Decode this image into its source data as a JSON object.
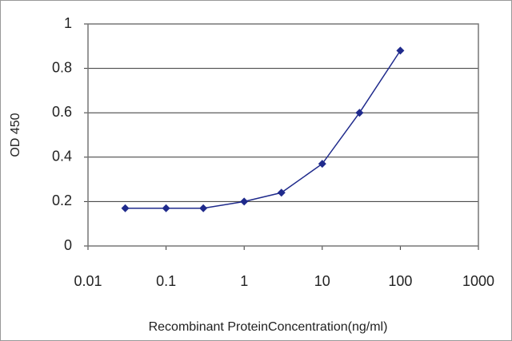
{
  "chart_data": {
    "type": "line",
    "xscale": "log",
    "x_label": "Recombinant ProteinConcentration(ng/ml)",
    "y_label": "OD 450",
    "x": [
      0.03,
      0.1,
      0.3,
      1,
      3,
      10,
      30,
      100
    ],
    "series": [
      {
        "color": "#1f2a8c",
        "values": [
          0.17,
          0.17,
          0.17,
          0.2,
          0.24,
          0.37,
          0.6,
          0.88
        ]
      }
    ],
    "xlim": [
      0.01,
      1000
    ],
    "xticks": [
      0.01,
      0.1,
      1,
      10,
      100,
      1000
    ],
    "ylim": [
      0,
      1
    ],
    "yticks": [
      0,
      0.2,
      0.4,
      0.6,
      0.8,
      1
    ],
    "grid": true
  }
}
